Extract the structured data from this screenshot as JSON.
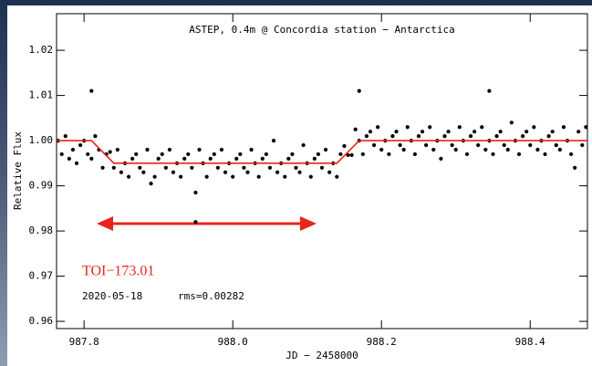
{
  "chart_data": {
    "type": "scatter",
    "title": "ASTEP, 0.4m @ Concordia station − Antarctica",
    "x_label": "JD − 2458000",
    "y_label": "Relative Flux",
    "xlim": [
      987.763,
      988.477
    ],
    "ylim": [
      0.9584,
      1.0281
    ],
    "xticks": [
      987.8,
      {
        "value": 988,
        "label": "988.0"
      },
      988.2,
      988.4
    ],
    "yticks": [
      0.96,
      0.97,
      0.98,
      0.99,
      {
        "value": 1,
        "label": "1.00"
      },
      1.01,
      1.02
    ],
    "annotations": [
      {
        "text": "TOI−173.01",
        "color": "#e8251d"
      },
      {
        "text": "2020-05-18",
        "color": "#000000"
      },
      {
        "text": "rms=0.00282",
        "color": "#000000"
      }
    ],
    "series": [
      {
        "type": "scatter",
        "color": "#000000",
        "x": [
          987.765,
          987.77,
          987.775,
          987.78,
          987.785,
          987.79,
          987.795,
          987.8,
          987.805,
          987.81,
          987.815,
          987.82,
          987.825,
          987.83,
          987.835,
          987.84,
          987.845,
          987.85,
          987.855,
          987.86,
          987.865,
          987.87,
          987.875,
          987.88,
          987.885,
          987.89,
          987.895,
          987.9,
          987.905,
          987.91,
          987.915,
          987.92,
          987.925,
          987.93,
          987.935,
          987.94,
          987.945,
          987.95,
          987.955,
          987.96,
          987.965,
          987.97,
          987.975,
          987.98,
          987.985,
          987.99,
          987.995,
          988,
          988.005,
          988.01,
          988.015,
          988.02,
          988.025,
          988.03,
          988.035,
          988.04,
          988.045,
          988.05,
          988.055,
          988.06,
          988.065,
          988.07,
          988.075,
          988.08,
          988.085,
          988.09,
          988.095,
          988.1,
          988.105,
          988.11,
          988.115,
          988.12,
          988.125,
          988.13,
          988.135,
          988.14,
          988.145,
          988.15,
          988.155,
          988.16,
          988.165,
          988.17,
          988.175,
          988.18,
          988.185,
          988.19,
          988.195,
          988.2,
          988.205,
          988.21,
          988.215,
          988.22,
          988.225,
          988.23,
          988.235,
          988.24,
          988.245,
          988.25,
          988.255,
          988.26,
          988.265,
          988.27,
          988.275,
          988.28,
          988.285,
          988.29,
          988.295,
          988.3,
          988.305,
          988.31,
          988.315,
          988.32,
          988.325,
          988.33,
          988.335,
          988.34,
          988.345,
          988.35,
          988.355,
          988.36,
          988.365,
          988.37,
          988.375,
          988.38,
          988.385,
          988.39,
          988.395,
          988.4,
          988.405,
          988.41,
          988.415,
          988.42,
          988.425,
          988.43,
          988.435,
          988.44,
          988.445,
          988.45,
          988.455,
          988.46,
          988.465,
          988.47,
          988.475,
          987.81,
          988.17,
          988.345,
          987.95
        ],
        "values": [
          1.0,
          0.997,
          1.001,
          0.996,
          0.998,
          0.995,
          0.999,
          1.0,
          0.997,
          0.996,
          1.001,
          0.998,
          0.994,
          0.997,
          0.9975,
          0.994,
          0.998,
          0.993,
          0.995,
          0.992,
          0.996,
          0.997,
          0.994,
          0.993,
          0.998,
          0.9905,
          0.992,
          0.996,
          0.997,
          0.994,
          0.998,
          0.993,
          0.995,
          0.992,
          0.996,
          0.997,
          0.994,
          0.9885,
          0.998,
          0.995,
          0.992,
          0.996,
          0.997,
          0.994,
          0.998,
          0.993,
          0.995,
          0.992,
          0.996,
          0.997,
          0.994,
          0.993,
          0.998,
          0.995,
          0.992,
          0.996,
          0.997,
          0.994,
          1.0,
          0.993,
          0.995,
          0.992,
          0.996,
          0.997,
          0.994,
          0.993,
          0.999,
          0.995,
          0.992,
          0.996,
          0.997,
          0.994,
          0.998,
          0.993,
          0.995,
          0.992,
          0.997,
          0.9988,
          0.9968,
          0.9968,
          1.0025,
          1.0,
          0.997,
          1.001,
          1.002,
          0.999,
          1.003,
          0.998,
          1.0,
          0.997,
          1.001,
          1.002,
          0.999,
          0.998,
          1.003,
          1.0,
          0.997,
          1.001,
          1.002,
          0.999,
          1.003,
          0.998,
          1.0,
          0.996,
          1.001,
          1.002,
          0.999,
          0.998,
          1.003,
          1.0,
          0.997,
          1.001,
          1.002,
          0.999,
          1.003,
          0.998,
          1.0,
          0.997,
          1.001,
          1.002,
          0.999,
          0.998,
          1.004,
          1.0,
          0.997,
          1.001,
          1.002,
          0.999,
          1.003,
          0.998,
          1.0,
          0.997,
          1.001,
          1.002,
          0.999,
          0.998,
          1.003,
          1.0,
          0.997,
          0.994,
          1.002,
          0.999,
          1.003,
          1.011,
          1.011,
          1.011,
          0.982
        ]
      },
      {
        "type": "line",
        "color": "#e8251d",
        "x": [
          987.763,
          987.81,
          987.84,
          988.14,
          988.17,
          988.477
        ],
        "values": [
          1.0,
          1.0,
          0.995,
          0.995,
          1.0,
          1.0
        ]
      }
    ]
  }
}
